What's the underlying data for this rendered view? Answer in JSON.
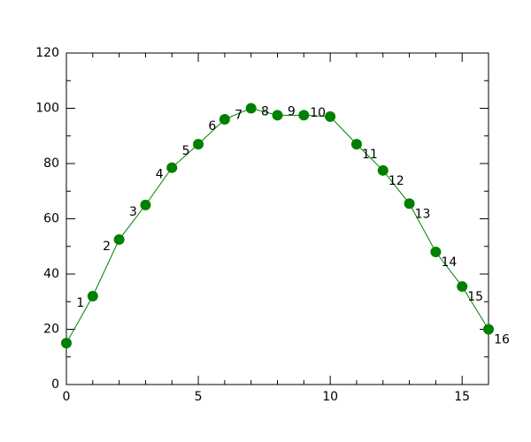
{
  "chart_data": {
    "type": "line",
    "x": [
      0,
      1,
      2,
      3,
      4,
      5,
      6,
      7,
      8,
      9,
      10,
      11,
      12,
      13,
      14,
      15,
      16
    ],
    "series": [
      {
        "color": "#008000",
        "values": [
          15,
          32,
          52.5,
          65,
          78.5,
          87,
          96,
          100,
          97.5,
          97.5,
          97,
          87,
          77.5,
          65.5,
          48,
          35.5,
          20
        ]
      }
    ],
    "point_labels": [
      null,
      "1",
      "2",
      "3",
      "4",
      "5",
      "6",
      "7",
      "8",
      "9",
      "10",
      "11",
      "12",
      "13",
      "14",
      "15",
      "16"
    ],
    "highlight_label": 4,
    "highlight_color": "#e8212b",
    "xlim": [
      0,
      16
    ],
    "xticks": [
      0,
      5,
      10,
      15
    ],
    "xminorticks": [
      1,
      2,
      3,
      4,
      6,
      7,
      8,
      9,
      11,
      12,
      13,
      14,
      16
    ],
    "ylim": [
      0,
      120
    ],
    "yticks": [
      0,
      20,
      40,
      60,
      80,
      100,
      120
    ],
    "yminorticks": [
      10,
      30,
      50,
      70,
      90,
      110
    ]
  }
}
